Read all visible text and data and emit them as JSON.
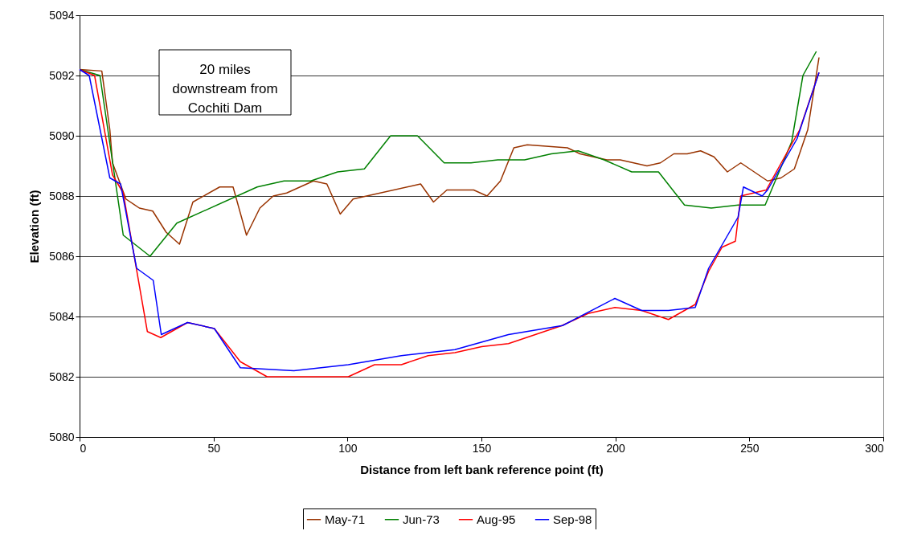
{
  "chart_data": {
    "type": "line",
    "xlabel": "Distance from left bank reference point (ft)",
    "ylabel": "Elevation (ft)",
    "xlim": [
      0,
      300
    ],
    "xticks": [
      0,
      50,
      100,
      150,
      200,
      250,
      300
    ],
    "ylim": [
      5080,
      5094
    ],
    "yticks": [
      5080,
      5082,
      5084,
      5086,
      5088,
      5090,
      5092,
      5094
    ],
    "grid": "y",
    "legend": "bottom",
    "marker": "none",
    "line_style": "solid",
    "annotations": [
      "20 miles\ndownstream from\nCochiti Dam"
    ],
    "series": [
      {
        "name": "May-71",
        "color": "#993300",
        "x": [
          0,
          8.3,
          11.3,
          12.3,
          17.3,
          22.3,
          27.3,
          32.3,
          37.3,
          42.3,
          52.3,
          57.3,
          62.3,
          67.3,
          72.3,
          77.3,
          87.3,
          92.3,
          97.3,
          102.1,
          127.3,
          132.1,
          137.1,
          147.1,
          152.1,
          157.1,
          162.1,
          167.1,
          182.1,
          186.8,
          196.8,
          201.8,
          211.8,
          216.8,
          221.8,
          226.8,
          231.8,
          236.8,
          241.8,
          246.8,
          256.8,
          261.8,
          266.8,
          271.8,
          276
        ],
        "values": [
          5092.2,
          5092.15,
          5090.2,
          5089.1,
          5087.9,
          5087.6,
          5087.5,
          5086.8,
          5086.4,
          5087.8,
          5088.3,
          5088.3,
          5086.7,
          5087.6,
          5088.0,
          5088.1,
          5088.5,
          5088.4,
          5087.4,
          5087.9,
          5088.4,
          5087.8,
          5088.2,
          5088.2,
          5088.0,
          5088.5,
          5089.6,
          5089.7,
          5089.6,
          5089.4,
          5089.2,
          5089.2,
          5089.0,
          5089.1,
          5089.4,
          5089.4,
          5089.5,
          5089.3,
          5088.8,
          5089.1,
          5088.5,
          5088.6,
          5088.9,
          5090.2,
          5092.6
        ]
      },
      {
        "name": "Jun-73",
        "color": "#008000",
        "x": [
          0,
          7.6,
          16.3,
          26.3,
          36.3,
          66.3,
          76.3,
          86.3,
          96.3,
          106.3,
          116.1,
          126.1,
          136.1,
          146.1,
          156.1,
          166.1,
          176.1,
          186.1,
          195.8,
          206.1,
          216.1,
          225.8,
          235.8,
          245.8,
          255.9,
          265.8,
          270,
          275
        ],
        "values": [
          5092.2,
          5092.0,
          5086.7,
          5086.0,
          5087.1,
          5088.3,
          5088.5,
          5088.5,
          5088.8,
          5088.9,
          5090.0,
          5090.0,
          5089.1,
          5089.1,
          5089.2,
          5089.2,
          5089.4,
          5089.5,
          5089.2,
          5088.8,
          5088.8,
          5087.7,
          5087.6,
          5087.7,
          5087.7,
          5089.8,
          5092.0,
          5092.8
        ]
      },
      {
        "name": "Aug-95",
        "color": "#ff0000",
        "x": [
          0,
          5.6,
          12.3,
          16.3,
          25.3,
          30.3,
          40.3,
          50.3,
          60.0,
          70.0,
          100.3,
          110.1,
          120.1,
          130.1,
          140.1,
          150.1,
          160.1,
          170.1,
          180.1,
          189.8,
          199.8,
          209.8,
          219.8,
          229.8,
          234.8,
          239.8,
          244.8,
          246.8,
          256.3,
          268.8,
          276
        ],
        "values": [
          5092.2,
          5092.0,
          5088.7,
          5088.1,
          5083.5,
          5083.3,
          5083.8,
          5083.6,
          5082.5,
          5082.0,
          5082.0,
          5082.4,
          5082.4,
          5082.7,
          5082.8,
          5083.0,
          5083.1,
          5083.4,
          5083.7,
          5084.1,
          5084.3,
          5084.2,
          5083.9,
          5084.4,
          5085.5,
          5086.3,
          5086.5,
          5088.0,
          5088.2,
          5090.2,
          5092.1
        ]
      },
      {
        "name": "Sep-98",
        "color": "#0000ff",
        "x": [
          0,
          3.6,
          11.3,
          15.3,
          21.3,
          27.5,
          30.5,
          40.3,
          50.3,
          60.0,
          80.0,
          100.3,
          120.1,
          140.1,
          160.1,
          180.3,
          199.8,
          209.8,
          219.8,
          229.8,
          234.8,
          245.8,
          247.8,
          254.8,
          256.8,
          267.8,
          276
        ],
        "values": [
          5092.2,
          5092.0,
          5088.6,
          5088.4,
          5085.6,
          5085.2,
          5083.4,
          5083.8,
          5083.6,
          5082.3,
          5082.2,
          5082.4,
          5082.7,
          5082.9,
          5083.4,
          5083.7,
          5084.6,
          5084.2,
          5084.2,
          5084.3,
          5085.6,
          5087.3,
          5088.3,
          5088.0,
          5088.2,
          5089.9,
          5092.1
        ]
      }
    ]
  }
}
